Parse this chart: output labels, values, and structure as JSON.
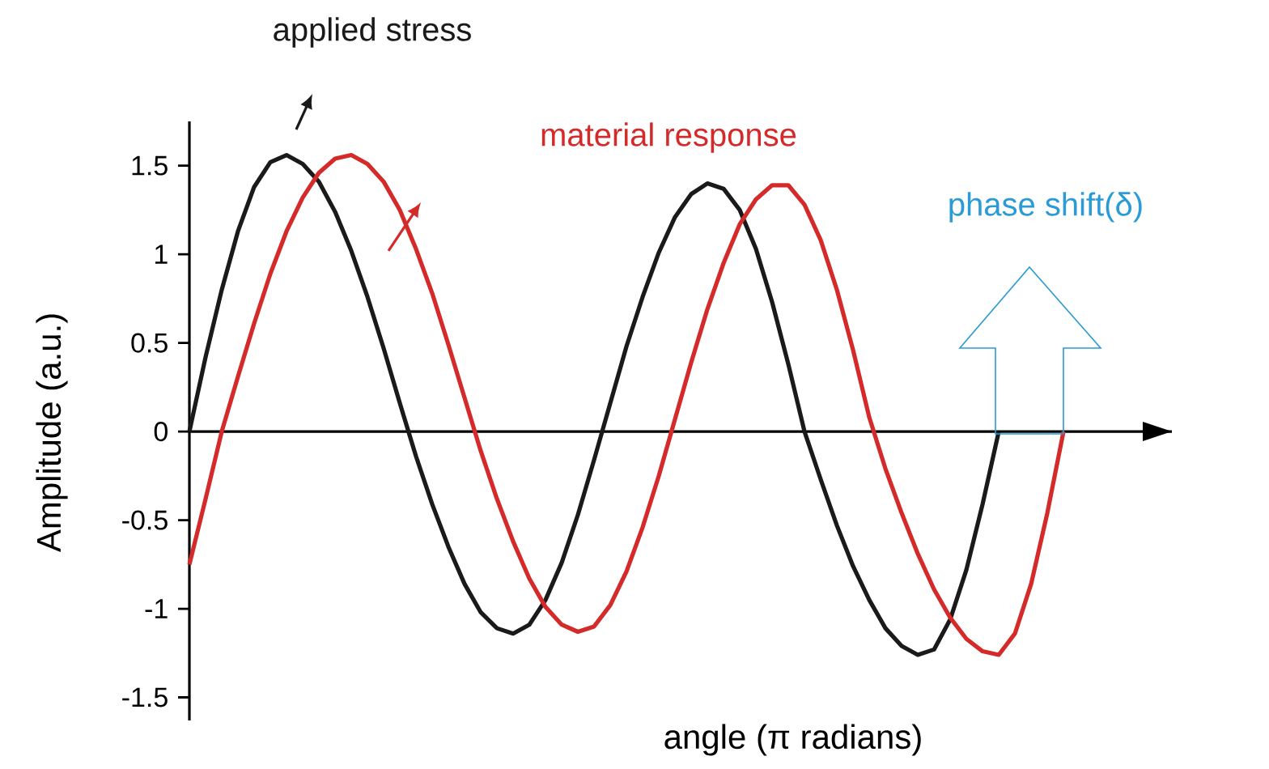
{
  "chart_data": {
    "type": "line",
    "xlabel": "angle (π radians)",
    "ylabel": "Amplitude (a.u.)",
    "categories": [
      null,
      null,
      null,
      null,
      null,
      null,
      null,
      null,
      null,
      null,
      null,
      null,
      null,
      null,
      null,
      null,
      null,
      null,
      null,
      null,
      null,
      null,
      null,
      null,
      null,
      null,
      null,
      null,
      null,
      null,
      null,
      null,
      null,
      null,
      null,
      null,
      null,
      null,
      null,
      null,
      null,
      null,
      null,
      null,
      null,
      null,
      null,
      null,
      null,
      null,
      null,
      null,
      null,
      null,
      null
    ],
    "series": [
      {
        "name": "applied stress",
        "color": "#1a1a1a",
        "values": [
          0,
          0.42,
          0.8,
          1.13,
          1.38,
          1.52,
          1.56,
          1.51,
          1.41,
          1.24,
          1.02,
          0.76,
          0.47,
          0.16,
          -0.14,
          -0.41,
          -0.65,
          -0.86,
          -1.02,
          -1.11,
          -1.14,
          -1.09,
          -0.95,
          -0.74,
          -0.47,
          -0.16,
          0.16,
          0.48,
          0.76,
          1.01,
          1.21,
          1.34,
          1.4,
          1.37,
          1.25,
          1.03,
          0.73,
          0.38,
          0,
          -0.27,
          -0.53,
          -0.76,
          -0.95,
          -1.11,
          -1.21,
          -1.26,
          -1.23,
          -1.06,
          -0.78,
          -0.41,
          0,
          null,
          null,
          null,
          null
        ]
      },
      {
        "name": "material response",
        "color": "#d42a2a",
        "values": [
          -0.75,
          -0.38,
          0,
          0.31,
          0.61,
          0.89,
          1.13,
          1.32,
          1.46,
          1.54,
          1.56,
          1.51,
          1.41,
          1.25,
          1.03,
          0.78,
          0.49,
          0.19,
          -0.11,
          -0.38,
          -0.62,
          -0.83,
          -0.99,
          -1.09,
          -1.13,
          -1.1,
          -0.98,
          -0.79,
          -0.54,
          -0.25,
          0.07,
          0.39,
          0.69,
          0.95,
          1.17,
          1.31,
          1.39,
          1.39,
          1.28,
          1.08,
          0.8,
          0.46,
          0.08,
          -0.21,
          -0.46,
          -0.69,
          -0.89,
          -1.05,
          -1.17,
          -1.24,
          -1.26,
          -1.14,
          -0.86,
          -0.46,
          0
        ]
      }
    ],
    "ylim": [
      -1.63,
      1.75
    ],
    "yticks": [
      -1.5,
      -1,
      -0.5,
      0,
      0.5,
      1,
      1.5
    ],
    "annotations": [
      "phase shift(δ)"
    ]
  }
}
